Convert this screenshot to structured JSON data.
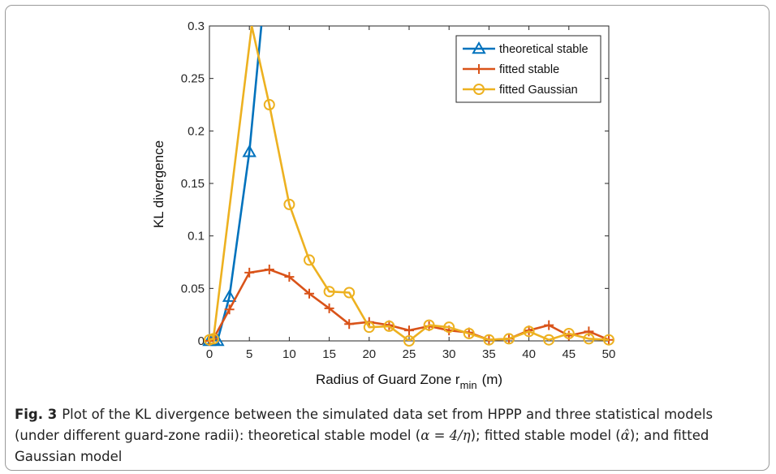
{
  "chart_data": {
    "type": "line",
    "xlabel": "Radius of Guard Zone r",
    "xlabel_sub": "min",
    "xlabel_unit": "(m)",
    "ylabel": "KL divergence",
    "xlim": [
      0,
      50
    ],
    "ylim": [
      0,
      0.3
    ],
    "xticks": [
      0,
      5,
      10,
      15,
      20,
      25,
      30,
      35,
      40,
      45,
      50
    ],
    "yticks": [
      0,
      0.05,
      0.1,
      0.15,
      0.2,
      0.25,
      0.3
    ],
    "ytick_labels": [
      "0",
      "0.05",
      "0.1",
      "0.15",
      "0.2",
      "0.25",
      "0.3"
    ],
    "grid": false,
    "legend_position": "top-right",
    "series": [
      {
        "name": "theoretical stable",
        "color": "#0072BD",
        "marker": "triangle",
        "x": [
          0,
          0.5,
          1,
          2.5,
          5,
          6.5
        ],
        "y": [
          0,
          0.001,
          0,
          0.042,
          0.18,
          0.3
        ],
        "marker_x": [
          0,
          0.5,
          1,
          2.5,
          5
        ]
      },
      {
        "name": "fitted stable",
        "color": "#D95319",
        "marker": "plus",
        "x": [
          0,
          0.5,
          2.5,
          5,
          7.5,
          10,
          12.5,
          15,
          17.5,
          20,
          22.5,
          25,
          27.5,
          30,
          32.5,
          35,
          37.5,
          40,
          42.5,
          45,
          47.5,
          50
        ],
        "y": [
          0,
          0.002,
          0.03,
          0.065,
          0.068,
          0.061,
          0.045,
          0.031,
          0.016,
          0.018,
          0.015,
          0.01,
          0.014,
          0.01,
          0.008,
          0.001,
          0.002,
          0.01,
          0.015,
          0.005,
          0.009,
          0.001
        ]
      },
      {
        "name": "fitted Gaussian",
        "color": "#EDB120",
        "marker": "circle",
        "x": [
          0,
          0.5,
          5.3,
          7.5,
          10,
          12.5,
          15,
          17.5,
          20,
          22.5,
          25,
          27.5,
          30,
          32.5,
          35,
          37.5,
          40,
          42.5,
          45,
          47.5,
          50
        ],
        "y": [
          0.001,
          0.002,
          0.3,
          0.225,
          0.13,
          0.077,
          0.047,
          0.046,
          0.013,
          0.014,
          0,
          0.015,
          0.013,
          0.007,
          0.001,
          0.002,
          0.009,
          0.001,
          0.007,
          0.002,
          0.001
        ],
        "marker_x": [
          0,
          0.5,
          7.5,
          10,
          12.5,
          15,
          17.5,
          20,
          22.5,
          25,
          27.5,
          30,
          32.5,
          35,
          37.5,
          40,
          42.5,
          45,
          47.5,
          50
        ]
      }
    ]
  },
  "caption": {
    "fig_label": "Fig. 3",
    "text_1": "Plot of the KL divergence between the simulated data set from HPPP and three statistical models (under different guard-zone radii): theoretical stable model (",
    "alpha_expr": "α = 4/η",
    "text_2": "); fitted stable model (",
    "alpha_hat": "α̂",
    "text_3": "); and fitted Gaussian model"
  }
}
